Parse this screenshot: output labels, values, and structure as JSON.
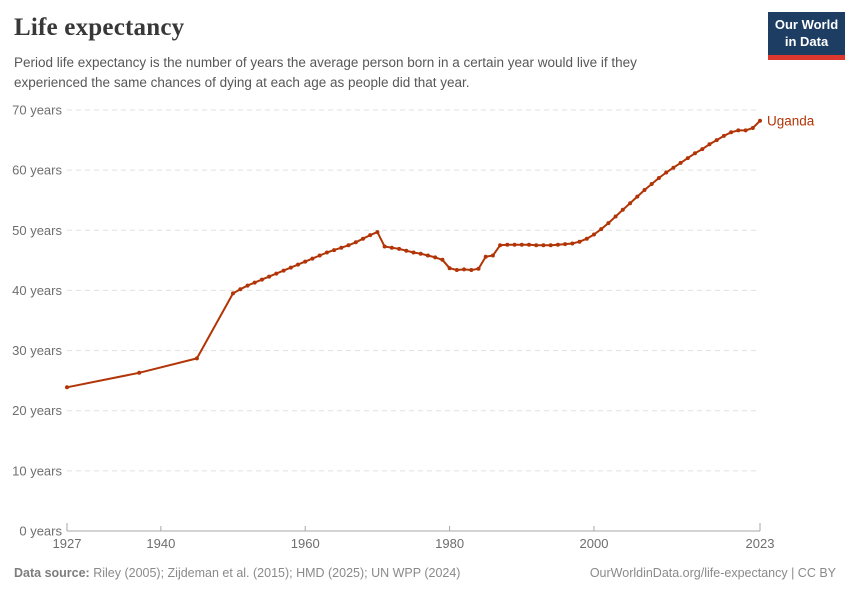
{
  "header": {
    "title": "Life expectancy",
    "subtitle": "Period life expectancy is the number of years the average person born in a certain year would live if they experienced the same chances of dying at each age as people did that year.",
    "logo": {
      "line1": "Our World",
      "line2": "in Data",
      "bg_color": "#1d3d63",
      "bar_color": "#dc382d"
    }
  },
  "chart_data": {
    "type": "line",
    "title": "Life expectancy",
    "entity_label": "Uganda",
    "line_color": "#b13507",
    "grid_color": "#e1e1e1",
    "axis_color": "#a7a7a7",
    "tick_text_color": "#6e6e6e",
    "grid": "dashed horizontal",
    "legend_position": "end-of-line label",
    "x_axis": {
      "range": [
        1927,
        2023
      ],
      "ticks": [
        1927,
        1940,
        1960,
        1980,
        2000,
        2023
      ]
    },
    "y_axis": {
      "range": [
        0,
        70
      ],
      "ticks": [
        0,
        10,
        20,
        30,
        40,
        50,
        60,
        70
      ],
      "tick_suffix": " years"
    },
    "series": [
      {
        "name": "Uganda",
        "points": [
          [
            1927,
            23.9
          ],
          [
            1937,
            26.3
          ],
          [
            1945,
            28.7
          ],
          [
            1950,
            39.5
          ],
          [
            1951,
            40.2
          ],
          [
            1952,
            40.8
          ],
          [
            1953,
            41.3
          ],
          [
            1954,
            41.8
          ],
          [
            1955,
            42.3
          ],
          [
            1956,
            42.8
          ],
          [
            1957,
            43.3
          ],
          [
            1958,
            43.8
          ],
          [
            1959,
            44.3
          ],
          [
            1960,
            44.8
          ],
          [
            1961,
            45.3
          ],
          [
            1962,
            45.8
          ],
          [
            1963,
            46.3
          ],
          [
            1964,
            46.7
          ],
          [
            1965,
            47.1
          ],
          [
            1966,
            47.5
          ],
          [
            1967,
            48.0
          ],
          [
            1968,
            48.6
          ],
          [
            1969,
            49.2
          ],
          [
            1970,
            49.7
          ],
          [
            1971,
            47.3
          ],
          [
            1972,
            47.1
          ],
          [
            1973,
            46.9
          ],
          [
            1974,
            46.6
          ],
          [
            1975,
            46.3
          ],
          [
            1976,
            46.1
          ],
          [
            1977,
            45.8
          ],
          [
            1978,
            45.5
          ],
          [
            1979,
            45.1
          ],
          [
            1980,
            43.7
          ],
          [
            1981,
            43.4
          ],
          [
            1982,
            43.5
          ],
          [
            1983,
            43.4
          ],
          [
            1984,
            43.6
          ],
          [
            1985,
            45.6
          ],
          [
            1986,
            45.8
          ],
          [
            1987,
            47.5
          ],
          [
            1988,
            47.6
          ],
          [
            1989,
            47.6
          ],
          [
            1990,
            47.6
          ],
          [
            1991,
            47.6
          ],
          [
            1992,
            47.5
          ],
          [
            1993,
            47.5
          ],
          [
            1994,
            47.5
          ],
          [
            1995,
            47.6
          ],
          [
            1996,
            47.7
          ],
          [
            1997,
            47.8
          ],
          [
            1998,
            48.1
          ],
          [
            1999,
            48.6
          ],
          [
            2000,
            49.3
          ],
          [
            2001,
            50.2
          ],
          [
            2002,
            51.2
          ],
          [
            2003,
            52.3
          ],
          [
            2004,
            53.4
          ],
          [
            2005,
            54.5
          ],
          [
            2006,
            55.6
          ],
          [
            2007,
            56.7
          ],
          [
            2008,
            57.7
          ],
          [
            2009,
            58.7
          ],
          [
            2010,
            59.6
          ],
          [
            2011,
            60.4
          ],
          [
            2012,
            61.2
          ],
          [
            2013,
            62.0
          ],
          [
            2014,
            62.8
          ],
          [
            2015,
            63.5
          ],
          [
            2016,
            64.3
          ],
          [
            2017,
            65.0
          ],
          [
            2018,
            65.7
          ],
          [
            2019,
            66.3
          ],
          [
            2020,
            66.6
          ],
          [
            2021,
            66.6
          ],
          [
            2022,
            67.0
          ],
          [
            2023,
            68.2
          ]
        ]
      }
    ]
  },
  "footer": {
    "source_label": "Data source:",
    "source_text": " Riley (2005); Zijdeman et al. (2015); HMD (2025); UN WPP (2024)",
    "right_text": "OurWorldinData.org/life-expectancy | CC BY"
  }
}
